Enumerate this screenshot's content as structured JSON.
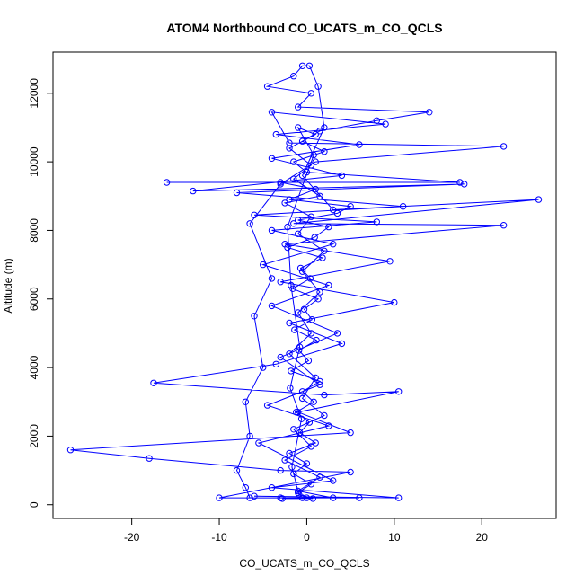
{
  "chart_data": {
    "type": "line",
    "title": "ATOM4 Northbound CO_UCATS_m_CO_QCLS",
    "xlabel": "CO_UCATS_m_CO_QCLS",
    "ylabel": "Altitude (m)",
    "xlim": [
      -29.0,
      28.5
    ],
    "ylim": [
      -400,
      13200
    ],
    "xticks": [
      -20,
      -10,
      0,
      10,
      20
    ],
    "yticks": [
      0,
      2000,
      4000,
      6000,
      8000,
      10000,
      12000
    ],
    "grid": false,
    "series_color": "#0000ff",
    "marker": "open-circle",
    "series": [
      {
        "values": [
          [
            -0.5,
            200
          ],
          [
            -1.0,
            350
          ],
          [
            0.5,
            600
          ],
          [
            -1.5,
            900
          ],
          [
            0.0,
            1200
          ],
          [
            -2.0,
            1500
          ],
          [
            1.0,
            1800
          ],
          [
            -0.8,
            2100
          ],
          [
            0.3,
            2400
          ],
          [
            -1.2,
            2700
          ],
          [
            0.8,
            3000
          ],
          [
            -0.5,
            3300
          ],
          [
            1.5,
            3600
          ],
          [
            -1.8,
            3900
          ],
          [
            0.2,
            4200
          ],
          [
            -0.9,
            4500
          ],
          [
            1.1,
            4800
          ],
          [
            -1.4,
            5100
          ],
          [
            0.6,
            5400
          ],
          [
            -0.3,
            5700
          ],
          [
            1.3,
            6000
          ],
          [
            -1.6,
            6300
          ],
          [
            0.4,
            6600
          ],
          [
            -0.7,
            6900
          ],
          [
            1.8,
            7200
          ],
          [
            -2.2,
            7500
          ],
          [
            0.9,
            7800
          ],
          [
            2.5,
            8100
          ],
          [
            -1.0,
            8300
          ],
          [
            3.5,
            8500
          ],
          [
            5.0,
            8700
          ],
          [
            -2.0,
            8900
          ],
          [
            1.0,
            9200
          ],
          [
            -3.0,
            9400
          ],
          [
            -16.0,
            9400
          ],
          [
            17.5,
            9400
          ],
          [
            0.0,
            9700
          ],
          [
            -1.5,
            10000
          ],
          [
            2.0,
            10300
          ],
          [
            -0.5,
            10600
          ],
          [
            1.5,
            10900
          ],
          [
            8.0,
            11200
          ],
          [
            14.0,
            11450
          ],
          [
            -1.0,
            11600
          ],
          [
            0.5,
            12000
          ],
          [
            -4.5,
            12200
          ],
          [
            -1.5,
            12500
          ],
          [
            -0.5,
            12800
          ],
          [
            0.3,
            12800
          ],
          [
            1.3,
            12200
          ],
          [
            2.0,
            11000
          ],
          [
            -0.5,
            9600
          ],
          [
            3.0,
            8600
          ],
          [
            26.5,
            8900
          ],
          [
            -1.5,
            8200
          ],
          [
            22.5,
            8150
          ],
          [
            -2.5,
            7600
          ],
          [
            9.5,
            7100
          ],
          [
            -3.0,
            6500
          ],
          [
            10.0,
            5900
          ],
          [
            -2.0,
            5300
          ],
          [
            4.0,
            4700
          ],
          [
            -3.5,
            4100
          ],
          [
            -17.5,
            3550
          ],
          [
            2.0,
            3200
          ],
          [
            10.5,
            3300
          ],
          [
            -1.0,
            2700
          ],
          [
            5.0,
            2100
          ],
          [
            -27.0,
            1600
          ],
          [
            -18.0,
            1350
          ],
          [
            -3.0,
            1000
          ],
          [
            5.0,
            950
          ],
          [
            -10.0,
            200
          ],
          [
            6.0,
            200
          ],
          [
            -6.0,
            250
          ],
          [
            10.5,
            200
          ],
          [
            -4.0,
            500
          ],
          [
            3.0,
            700
          ],
          [
            -5.5,
            1800
          ],
          [
            2.5,
            2300
          ],
          [
            -4.5,
            2900
          ],
          [
            1.5,
            3500
          ],
          [
            -3.0,
            4300
          ],
          [
            3.5,
            5000
          ],
          [
            -4.0,
            5800
          ],
          [
            2.5,
            6400
          ],
          [
            -5.0,
            7000
          ],
          [
            3.0,
            7600
          ],
          [
            -4.0,
            8000
          ],
          [
            8.0,
            8250
          ],
          [
            -6.0,
            8450
          ],
          [
            11.0,
            8700
          ],
          [
            -8.0,
            9100
          ],
          [
            18.0,
            9350
          ],
          [
            -13.0,
            9150
          ],
          [
            4.0,
            9600
          ],
          [
            -4.0,
            10100
          ],
          [
            6.0,
            10500
          ],
          [
            -3.5,
            10800
          ],
          [
            9.0,
            11100
          ],
          [
            -4.0,
            11450
          ],
          [
            -2.0,
            10550
          ],
          [
            22.5,
            10450
          ],
          [
            1.0,
            10000
          ],
          [
            -3.0,
            9350
          ],
          [
            -6.5,
            8200
          ],
          [
            -4.0,
            6600
          ],
          [
            -6.0,
            5500
          ],
          [
            -5.0,
            4000
          ],
          [
            -7.0,
            3000
          ],
          [
            -6.5,
            2000
          ],
          [
            -8.0,
            1000
          ],
          [
            -7.0,
            500
          ],
          [
            -6.5,
            200
          ],
          [
            -3.0,
            200
          ],
          [
            0.0,
            200
          ],
          [
            3.0,
            200
          ],
          [
            -1.0,
            400
          ],
          [
            1.5,
            800
          ],
          [
            -2.5,
            1300
          ],
          [
            0.5,
            1700
          ],
          [
            -1.5,
            2200
          ],
          [
            2.0,
            2600
          ],
          [
            -0.5,
            3100
          ],
          [
            1.0,
            3700
          ],
          [
            -2.0,
            4400
          ],
          [
            0.5,
            5000
          ],
          [
            -1.0,
            5600
          ],
          [
            1.5,
            6200
          ],
          [
            -0.5,
            6800
          ],
          [
            2.0,
            7400
          ],
          [
            -1.0,
            7900
          ],
          [
            0.5,
            8400
          ],
          [
            -2.5,
            8800
          ],
          [
            1.5,
            9000
          ],
          [
            -1.5,
            9500
          ],
          [
            0.5,
            9900
          ],
          [
            -2.0,
            10400
          ],
          [
            1.0,
            10800
          ],
          [
            -1.0,
            11000
          ],
          [
            0.8,
            10200
          ],
          [
            -2.2,
            8100
          ],
          [
            -1.8,
            6400
          ],
          [
            -0.8,
            4600
          ],
          [
            -1.9,
            3400
          ],
          [
            -0.6,
            2500
          ],
          [
            -1.7,
            1100
          ],
          [
            -0.9,
            300
          ],
          [
            0.7,
            180
          ],
          [
            -2.8,
            180
          ]
        ]
      }
    ]
  }
}
